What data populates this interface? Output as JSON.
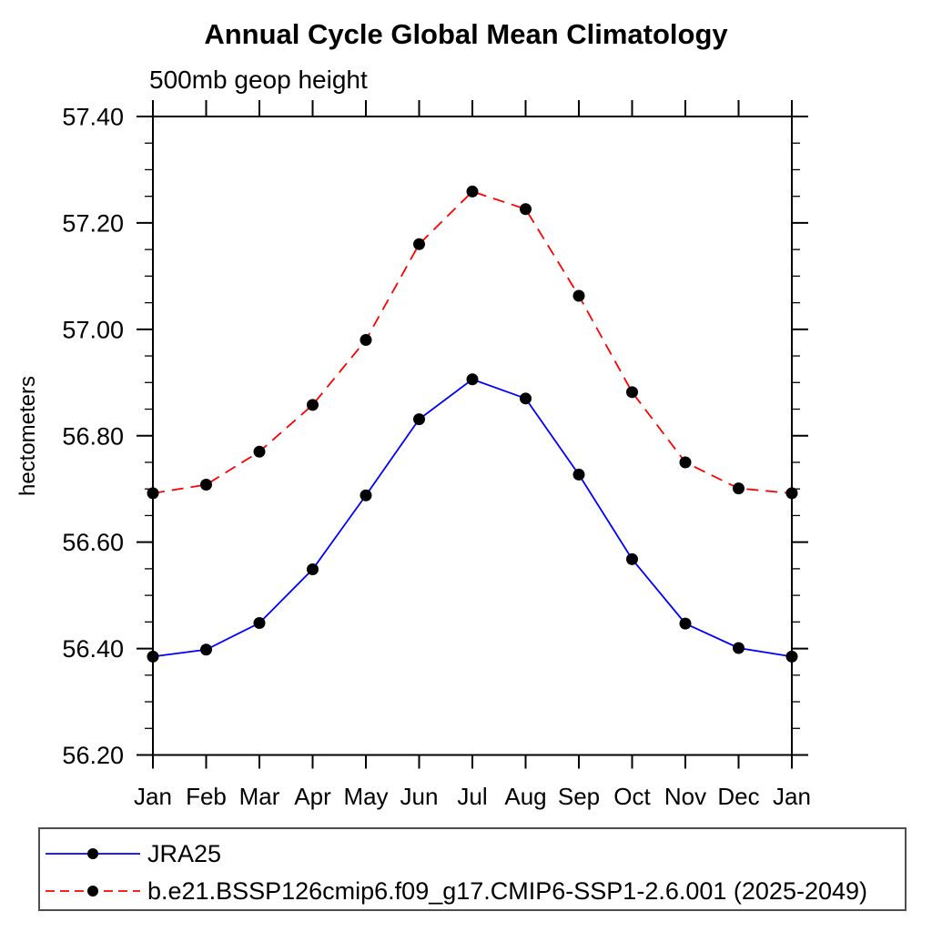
{
  "chart_data": {
    "type": "line",
    "title": "Annual Cycle Global Mean Climatology",
    "subtitle": "500mb geop height",
    "ylabel": "hectometers",
    "xlabel": "",
    "x_tick_labels": [
      "Jan",
      "Feb",
      "Mar",
      "Apr",
      "May",
      "Jun",
      "Jul",
      "Aug",
      "Sep",
      "Oct",
      "Nov",
      "Dec",
      "Jan"
    ],
    "ylim": [
      56.2,
      57.4
    ],
    "y_major_ticks": [
      56.2,
      56.4,
      56.6,
      56.8,
      57.0,
      57.2,
      57.4
    ],
    "y_major_tick_labels": [
      "56.20",
      "56.40",
      "56.60",
      "56.80",
      "57.00",
      "57.20",
      "57.40"
    ],
    "y_minor_step": 0.05,
    "grid": false,
    "legend_position": "bottom-left-box",
    "frame_color": "#000000",
    "marker": "filled-circle",
    "series": [
      {
        "name": "JRA25",
        "color": "#0000ff",
        "style": "solid",
        "marker_color": "#000000",
        "values": [
          56.385,
          56.398,
          56.448,
          56.549,
          56.688,
          56.831,
          56.906,
          56.87,
          56.727,
          56.568,
          56.447,
          56.401,
          56.385
        ]
      },
      {
        "name": "b.e21.BSSP126cmip6.f09_g17.CMIP6-SSP1-2.6.001 (2025-2049)",
        "color": "#ff0000",
        "style": "dashed",
        "marker_color": "#000000",
        "values": [
          56.692,
          56.708,
          56.77,
          56.858,
          56.98,
          57.16,
          57.259,
          57.226,
          57.063,
          56.882,
          56.75,
          56.701,
          56.692
        ]
      }
    ]
  }
}
